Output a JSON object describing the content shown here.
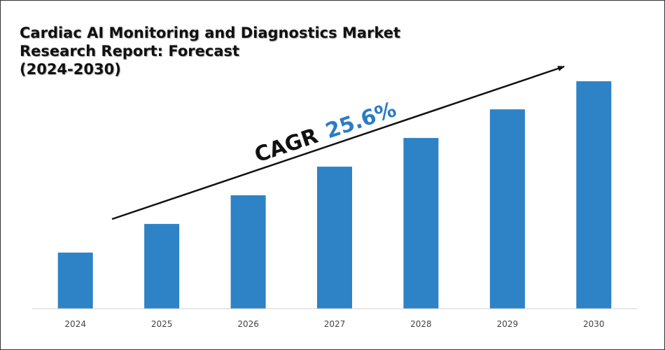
{
  "chart_data": {
    "type": "bar",
    "title_lines": [
      "Cardiac AI Monitoring and Diagnostics Market",
      "Research Report: Forecast",
      "(2024-2030)"
    ],
    "categories": [
      "2024",
      "2025",
      "2026",
      "2027",
      "2028",
      "2029",
      "2030"
    ],
    "values": [
      1.0,
      1.51,
      2.02,
      2.53,
      3.04,
      3.55,
      4.05
    ],
    "ylim": [
      0,
      4.6
    ],
    "grid": false,
    "legend": "none",
    "annotation": {
      "label": "CAGR",
      "value": "25.6%"
    },
    "colors": {
      "bar": "#2e82c6",
      "annotation_value": "#2b7cc4",
      "arrow": "#111111"
    }
  }
}
